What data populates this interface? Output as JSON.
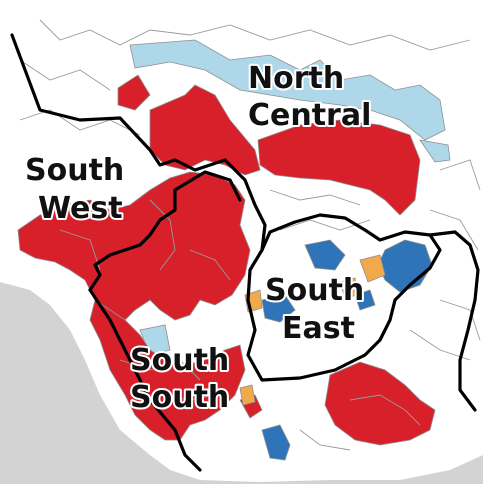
{
  "map": {
    "colors": {
      "sea": "#d3d3d3",
      "land": "#ffffff",
      "category_red": "#d7202a",
      "category_light_blue": "#aed8ea",
      "category_dark_blue": "#2f74b8",
      "category_orange": "#f2a94c",
      "boundary": "#000000",
      "lga_line": "#9a9a9a"
    },
    "labels": {
      "north_central": [
        "North",
        "Central"
      ],
      "south_west": [
        "South",
        "West"
      ],
      "south_east": [
        "South",
        "East"
      ],
      "south_south": [
        "South",
        "South"
      ]
    }
  }
}
